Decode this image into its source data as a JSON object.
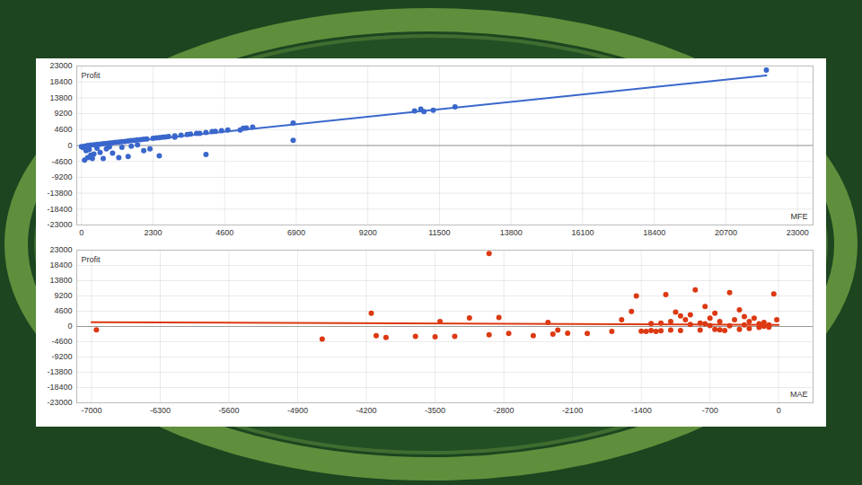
{
  "chart_data": [
    {
      "type": "scatter",
      "ylabel": "Profit",
      "xlabel": "MFE",
      "color": "#3a67cc",
      "marker": "circle",
      "grid": true,
      "xlim": [
        -150,
        23500
      ],
      "xticks": [
        0,
        2300,
        4600,
        6900,
        9200,
        11500,
        13800,
        16100,
        18400,
        20700,
        23000
      ],
      "ylim": [
        -23000,
        23000
      ],
      "yticks": [
        -23000,
        -18400,
        -13800,
        -9200,
        -4600,
        0,
        4600,
        9200,
        13800,
        18400,
        23000
      ],
      "x": [
        100,
        200,
        300,
        400,
        350,
        150,
        50,
        0,
        100,
        200,
        300,
        400,
        500,
        600,
        700,
        800,
        900,
        1000,
        1100,
        1200,
        1300,
        1400,
        1500,
        1600,
        1700,
        1800,
        1900,
        2000,
        2100,
        2300,
        2400,
        2500,
        2700,
        2800,
        3000,
        3200,
        3400,
        3500,
        3700,
        3800,
        4000,
        4200,
        4300,
        4500,
        4700,
        5200,
        5300,
        5500,
        5100,
        4000,
        2500,
        6800,
        6800,
        10700,
        10900,
        11000,
        11300,
        12000,
        22000,
        1200,
        1000,
        800,
        1500,
        2000,
        600,
        700,
        1800,
        1300,
        2200,
        500,
        250,
        1600,
        900,
        3000,
        2600
      ],
      "values": [
        -4200,
        -3500,
        -2800,
        -2500,
        -3800,
        -1500,
        -600,
        -300,
        -200,
        0,
        100,
        200,
        300,
        400,
        500,
        600,
        700,
        800,
        900,
        1000,
        1100,
        1200,
        1300,
        1400,
        1500,
        1600,
        1700,
        1800,
        1900,
        2100,
        2200,
        2300,
        2500,
        2600,
        2800,
        3000,
        3200,
        3300,
        3500,
        3500,
        3800,
        4000,
        4100,
        4300,
        4500,
        5000,
        5100,
        5300,
        4500,
        -2600,
        -3000,
        6500,
        1500,
        10000,
        10500,
        9800,
        10200,
        11200,
        21800,
        -3500,
        -2200,
        -1000,
        -3200,
        -1500,
        -2000,
        -3800,
        200,
        -500,
        -1000,
        -800,
        -1200,
        -200,
        -400,
        2400,
        2400
      ],
      "trend_line": {
        "x": [
          0,
          22000
        ],
        "values": [
          -300,
          20300
        ]
      }
    },
    {
      "type": "scatter",
      "ylabel": "Profit",
      "xlabel": "MAE",
      "color": "#dc3912",
      "marker": "circle",
      "grid": true,
      "xlim": [
        -7150,
        350
      ],
      "xticks": [
        -7000,
        -6300,
        -5600,
        -4900,
        -4200,
        -3500,
        -2800,
        -2100,
        -1400,
        -700,
        0
      ],
      "ylim": [
        -23000,
        23000
      ],
      "yticks": [
        -23000,
        -18400,
        -13800,
        -9200,
        -4600,
        0,
        4600,
        9200,
        13800,
        18400,
        23000
      ],
      "x": [
        -6950,
        -4650,
        -4150,
        -4100,
        -4000,
        -3700,
        -3500,
        -3450,
        -3300,
        -2950,
        -3150,
        -2950,
        -2850,
        -2750,
        -2500,
        -2350,
        -2300,
        -2250,
        -2150,
        -1950,
        -1700,
        -1600,
        -1500,
        -1450,
        -1350,
        -1300,
        -1250,
        -1200,
        -1150,
        -1100,
        -1050,
        -1000,
        -950,
        -900,
        -850,
        -800,
        -750,
        -700,
        -650,
        -600,
        -550,
        -500,
        -450,
        -400,
        -350,
        -300,
        -250,
        -200,
        -150,
        -100,
        -50,
        -20,
        -600,
        -800,
        -1000,
        -400,
        -300,
        -200,
        -100,
        -900,
        -700,
        -500,
        -1200,
        -1400,
        -1300,
        -1100,
        -350,
        -150,
        -750,
        -650
      ],
      "values": [
        -1000,
        -3800,
        4000,
        -2800,
        -3300,
        -3000,
        -3100,
        1500,
        -3000,
        -2500,
        2600,
        22000,
        2700,
        -2100,
        -2800,
        1200,
        -2300,
        -1100,
        -2000,
        -2100,
        -1500,
        2000,
        4500,
        9200,
        -1500,
        900,
        -1500,
        1000,
        9600,
        1500,
        4300,
        3200,
        2000,
        3500,
        11000,
        1000,
        6000,
        2500,
        4000,
        1500,
        -1200,
        10200,
        2000,
        5000,
        3000,
        1500,
        2500,
        800,
        1200,
        500,
        9800,
        2000,
        -1000,
        -1100,
        -1200,
        -900,
        -600,
        -300,
        -200,
        600,
        300,
        200,
        -1300,
        -1400,
        -1200,
        -1100,
        500,
        100,
        800,
        -900
      ],
      "trend_line": {
        "x": [
          -7000,
          0
        ],
        "values": [
          1300,
          500
        ]
      }
    }
  ]
}
